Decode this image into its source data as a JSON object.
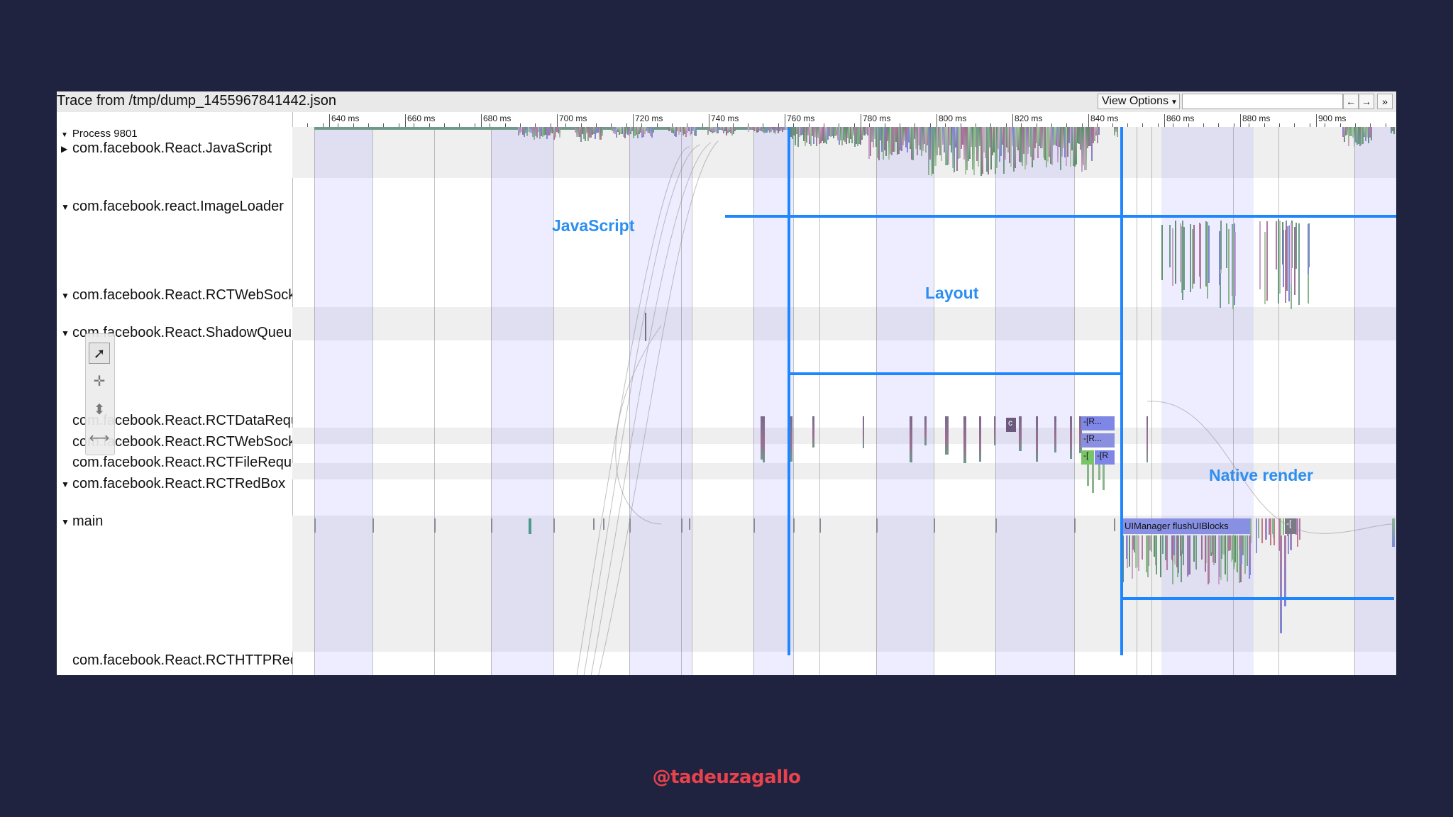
{
  "trace": {
    "title": "Trace from /tmp/dump_1455967841442.json"
  },
  "toolbar": {
    "view_options_label": "View Options",
    "search_value": "",
    "nav_prev": "←",
    "nav_next": "→",
    "more": "»"
  },
  "ruler": {
    "ticks": [
      "640 ms",
      "660 ms",
      "680 ms",
      "700 ms",
      "720 ms",
      "740 ms",
      "760 ms",
      "780 ms",
      "800 ms",
      "820 ms",
      "840 ms",
      "860 ms",
      "880 ms",
      "900 ms"
    ]
  },
  "process": {
    "label": "Process 9801"
  },
  "tracks": [
    {
      "label": "com.facebook.React.JavaScript",
      "expanded": false
    },
    {
      "label": "com.facebook.react.ImageLoader",
      "expanded": true
    },
    {
      "label": "com.facebook.React.RCTWebSocket",
      "expanded": true
    },
    {
      "label": "com.facebook.React.ShadowQueue",
      "expanded": true
    },
    {
      "label": "com.facebook.React.RCTDataRequest",
      "expanded": null
    },
    {
      "label": "com.facebook.React.RCTWebSocket",
      "expanded": null
    },
    {
      "label": "com.facebook.React.RCTFileRequest",
      "expanded": null
    },
    {
      "label": "com.facebook.React.RCTRedBox",
      "expanded": true
    },
    {
      "label": "main",
      "expanded": true
    },
    {
      "label": "com.facebook.React.RCTHTTPRequest",
      "expanded": null
    }
  ],
  "tools": [
    "select-icon",
    "pan-icon",
    "zoom-icon",
    "timing-icon"
  ],
  "annotations": {
    "javascript": "JavaScript",
    "layout": "Layout",
    "native_render": "Native render"
  },
  "slices": {
    "flush": "UIManager flushUIBlocks",
    "r1": "-[R...",
    "r2": "-[R...",
    "r3a": "-[",
    "r3b": "-[R",
    "c": "c",
    "mini": "-["
  },
  "credit": "@tadeuzagallo",
  "colors": {
    "background": "#1f2340",
    "annotation_blue": "#1e86ff",
    "credit_red": "#e8424c"
  }
}
